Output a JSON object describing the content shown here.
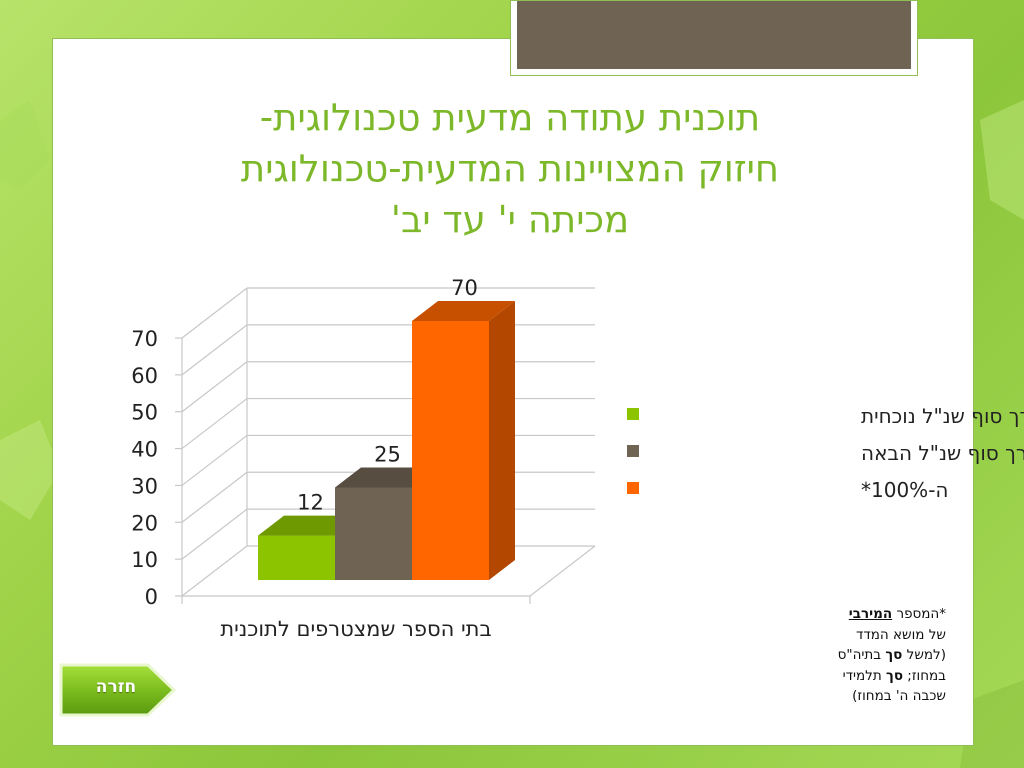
{
  "title_lines": [
    "תוכנית עתודה מדעית טכנולוגית-",
    "חיזוק המצויינות המדעית-טכנולוגית",
    "מכיתה י' עד יב'"
  ],
  "chart_data": {
    "type": "bar",
    "categories": [
      "בתי הספר שמצטרפים לתוכנית"
    ],
    "series": [
      {
        "name": "ערך סוף שנ\"ל נוכחית",
        "values": [
          12
        ],
        "color": "#8dc400"
      },
      {
        "name": "ערך סוף שנ\"ל הבאה",
        "values": [
          25
        ],
        "color": "#6f6453"
      },
      {
        "name": "ה-100%*",
        "values": [
          70
        ],
        "color": "#ff6600"
      }
    ],
    "yticks": [
      0,
      10,
      20,
      30,
      40,
      50,
      60,
      70
    ],
    "ylim": [
      0,
      70
    ],
    "grid": true,
    "three_d": true,
    "legend_position": "right"
  },
  "note": {
    "line1_prefix": "*המספר ",
    "line1_bold": "המירבי",
    "line2": "של מושא המדד",
    "line3_a": "(למשל ",
    "line3_bold": "סך",
    "line3_b": " בתיה\"ס",
    "line4_a": "במחוז; ",
    "line4_bold": "סך",
    "line4_b": " תלמידי",
    "line5": "שכבה ה' במחוז)"
  },
  "back_button": {
    "label": "חזרה",
    "color": "#7cbd1e"
  }
}
